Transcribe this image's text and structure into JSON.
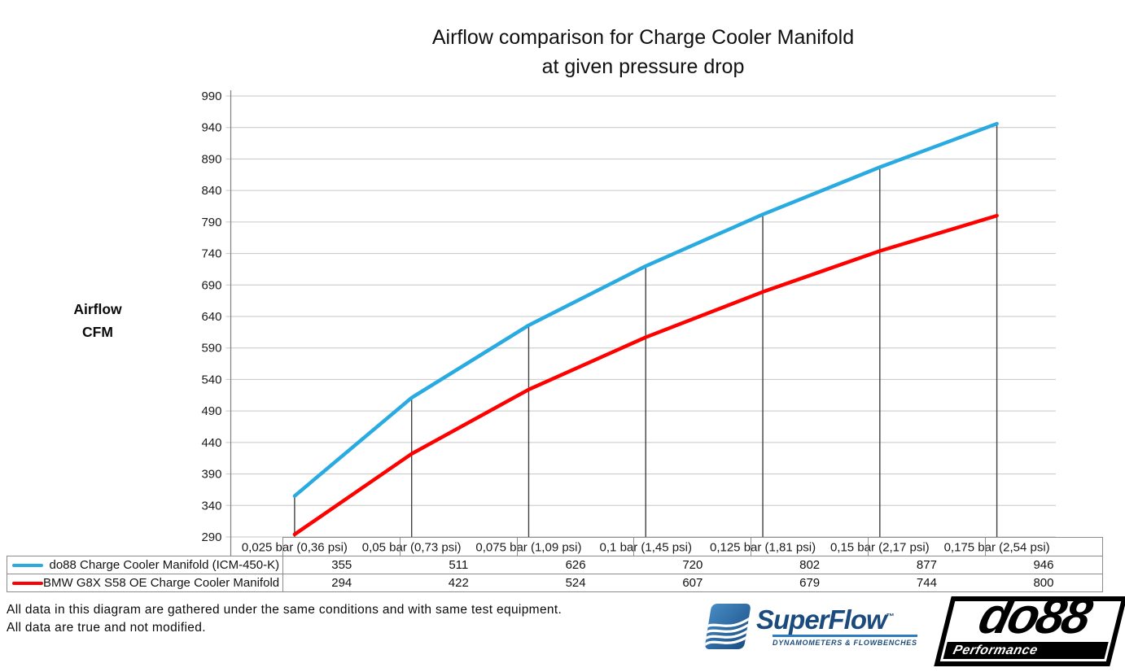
{
  "title": {
    "line1": "Airflow comparison for Charge Cooler Manifold",
    "line2": "at given pressure drop"
  },
  "y_axis_title": {
    "line1": "Airflow",
    "line2": "CFM"
  },
  "chart_data": {
    "type": "line",
    "title": "Airflow comparison for Charge Cooler Manifold at given pressure drop",
    "ylabel": "Airflow CFM",
    "categories": [
      "0,025 bar (0,36 psi)",
      "0,05 bar (0,73 psi)",
      "0,075 bar (1,09 psi)",
      "0,1 bar (1,45 psi)",
      "0,125 bar (1,81 psi)",
      "0,15 bar (2,17 psi)",
      "0,175 bar (2,54 psi)"
    ],
    "series": [
      {
        "name": "do88 Charge Cooler Manifold (ICM-450-K)",
        "color": "#29abe2",
        "values": [
          355,
          511,
          626,
          720,
          802,
          877,
          946
        ]
      },
      {
        "name": "BMW G8X S58 OE Charge Cooler Manifold",
        "color": "#ff0000",
        "values": [
          294,
          422,
          524,
          607,
          679,
          744,
          800
        ]
      }
    ],
    "ylim": [
      290,
      990
    ],
    "ytick_step": 50,
    "grid": true,
    "legend_position": "table-left",
    "colors": {
      "gridline": "#c6c6c6",
      "axis": "#808080",
      "drop_line": "#404040",
      "table_border": "#8c8c8c"
    }
  },
  "footer": {
    "line1": "All data in this diagram are gathered under the same conditions and with same test equipment.",
    "line2": "All data are true and not modified."
  },
  "logos": {
    "superflow": {
      "wordmark": "SuperFlow",
      "trademark": "™",
      "tagline": "DYNAMOMETERS & FLOWBENCHES",
      "brand_blue": "#2e7cc0",
      "text_color": "#1b4b7e"
    },
    "do88": {
      "wordmark": "do88",
      "tagline": "Performance"
    }
  }
}
